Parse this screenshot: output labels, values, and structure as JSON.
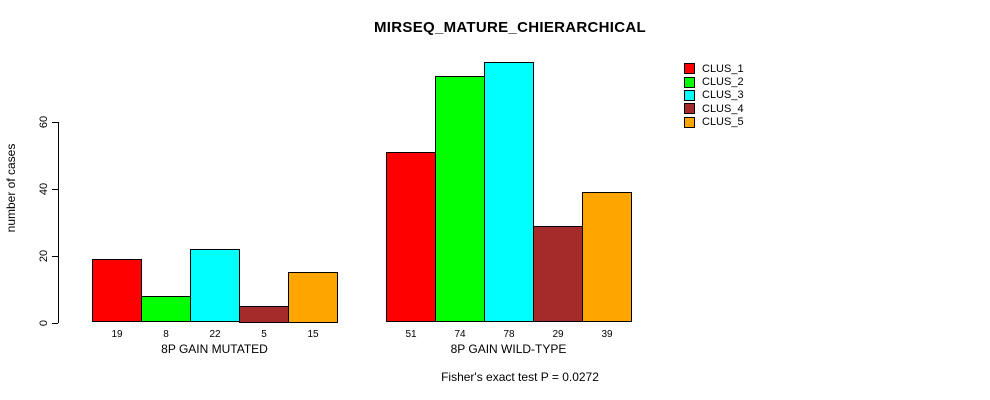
{
  "chart_data": {
    "type": "bar",
    "title": "MIRSEQ_MATURE_CHIERARCHICAL",
    "xlabel": "",
    "ylabel": "number of cases",
    "ylim": [
      0,
      80
    ],
    "yticks": [
      0,
      20,
      40,
      60
    ],
    "grid": false,
    "legend_position": "top-right",
    "categories": [
      "8P GAIN MUTATED",
      "8P GAIN WILD-TYPE"
    ],
    "series": [
      {
        "name": "CLUS_1",
        "color": "#FF0000",
        "values": [
          19,
          51
        ]
      },
      {
        "name": "CLUS_2",
        "color": "#00FF00",
        "values": [
          8,
          74
        ]
      },
      {
        "name": "CLUS_3",
        "color": "#00FFFF",
        "values": [
          22,
          78
        ]
      },
      {
        "name": "CLUS_4",
        "color": "#A52A2A",
        "values": [
          5,
          29
        ]
      },
      {
        "name": "CLUS_5",
        "color": "#FFA500",
        "values": [
          15,
          39
        ]
      }
    ],
    "bar_value_labels": [
      [
        19,
        8,
        22,
        5,
        15
      ],
      [
        51,
        74,
        78,
        29,
        39
      ]
    ],
    "annotation": "Fisher's exact test P = 0.0272"
  }
}
